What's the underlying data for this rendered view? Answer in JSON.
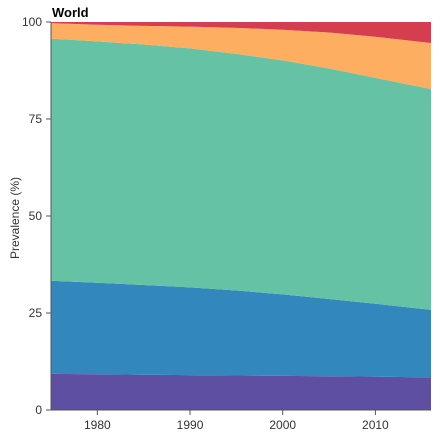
{
  "chart_data": {
    "type": "area",
    "stacked": true,
    "title": "World",
    "xlabel": "",
    "ylabel": "Prevalence (%)",
    "xlim": [
      1975,
      2016
    ],
    "ylim": [
      0,
      100
    ],
    "x_ticks": [
      1980,
      1990,
      2000,
      2010
    ],
    "y_ticks": [
      0,
      25,
      50,
      75,
      100
    ],
    "x": [
      1975,
      1980,
      1985,
      1990,
      1995,
      2000,
      2005,
      2010,
      2016
    ],
    "series": [
      {
        "color": "#5e4fa2",
        "values": [
          9.3,
          9.2,
          9.1,
          9.0,
          8.9,
          8.8,
          8.7,
          8.6,
          8.4
        ]
      },
      {
        "color": "#3288bd",
        "values": [
          24.0,
          23.6,
          23.1,
          22.6,
          21.9,
          21.0,
          19.9,
          18.8,
          17.4
        ]
      },
      {
        "color": "#66c2a5",
        "values": [
          62.4,
          62.2,
          62.0,
          61.6,
          61.0,
          60.3,
          59.4,
          58.2,
          56.9
        ]
      },
      {
        "color": "#fdae61",
        "values": [
          4.0,
          4.3,
          4.8,
          5.6,
          6.7,
          7.9,
          9.3,
          10.6,
          11.9
        ]
      },
      {
        "color": "#d53e4f",
        "values": [
          0.3,
          0.7,
          1.0,
          1.2,
          1.5,
          2.0,
          2.7,
          3.8,
          5.4
        ]
      }
    ]
  }
}
